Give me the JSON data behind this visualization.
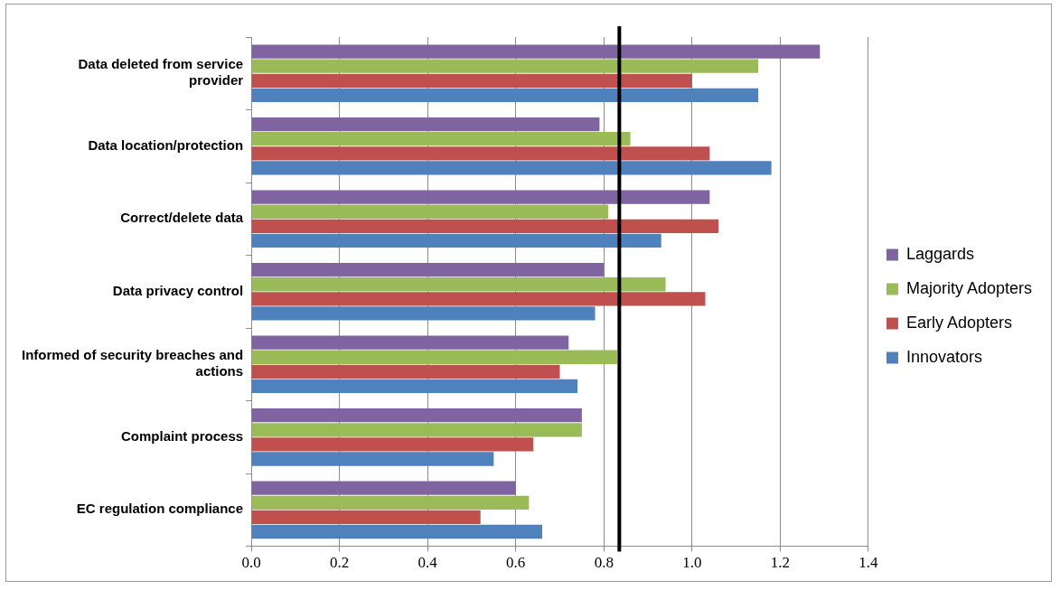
{
  "chart_data": {
    "type": "bar",
    "orientation": "horizontal",
    "categories": [
      "Data deleted from service provider",
      "Data location/protection",
      "Correct/delete data",
      "Data privacy control",
      "Informed of security breaches and actions",
      "Complaint process",
      "EC regulation compliance"
    ],
    "series": [
      {
        "name": "Laggards",
        "color": "#8064a2",
        "values": [
          1.29,
          0.79,
          1.04,
          0.8,
          0.72,
          0.75,
          0.6
        ]
      },
      {
        "name": "Majority Adopters",
        "color": "#9bbb59",
        "values": [
          1.15,
          0.86,
          0.81,
          0.94,
          0.83,
          0.75,
          0.63
        ]
      },
      {
        "name": "Early Adopters",
        "color": "#c0504d",
        "values": [
          1.0,
          1.04,
          1.06,
          1.03,
          0.7,
          0.64,
          0.52
        ]
      },
      {
        "name": "Innovators",
        "color": "#4f81bd",
        "values": [
          1.15,
          1.18,
          0.93,
          0.78,
          0.74,
          0.55,
          0.66
        ]
      }
    ],
    "xlim": [
      0,
      1.4
    ],
    "xticks": [
      {
        "value": 0,
        "label": "0.0"
      },
      {
        "value": 0.2,
        "label": "0.2"
      },
      {
        "value": 0.4,
        "label": "0.4"
      },
      {
        "value": 0.6,
        "label": "0.6"
      },
      {
        "value": 0.8,
        "label": "0.8"
      },
      {
        "value": 1,
        "label": "1.0"
      },
      {
        "value": 1.2,
        "label": "1.2"
      },
      {
        "value": 1.4,
        "label": "1.4"
      }
    ],
    "ref_lines": [
      {
        "axis": "x",
        "value": 0.835,
        "color": "#000000"
      }
    ],
    "grid": "x",
    "legend": "right"
  }
}
